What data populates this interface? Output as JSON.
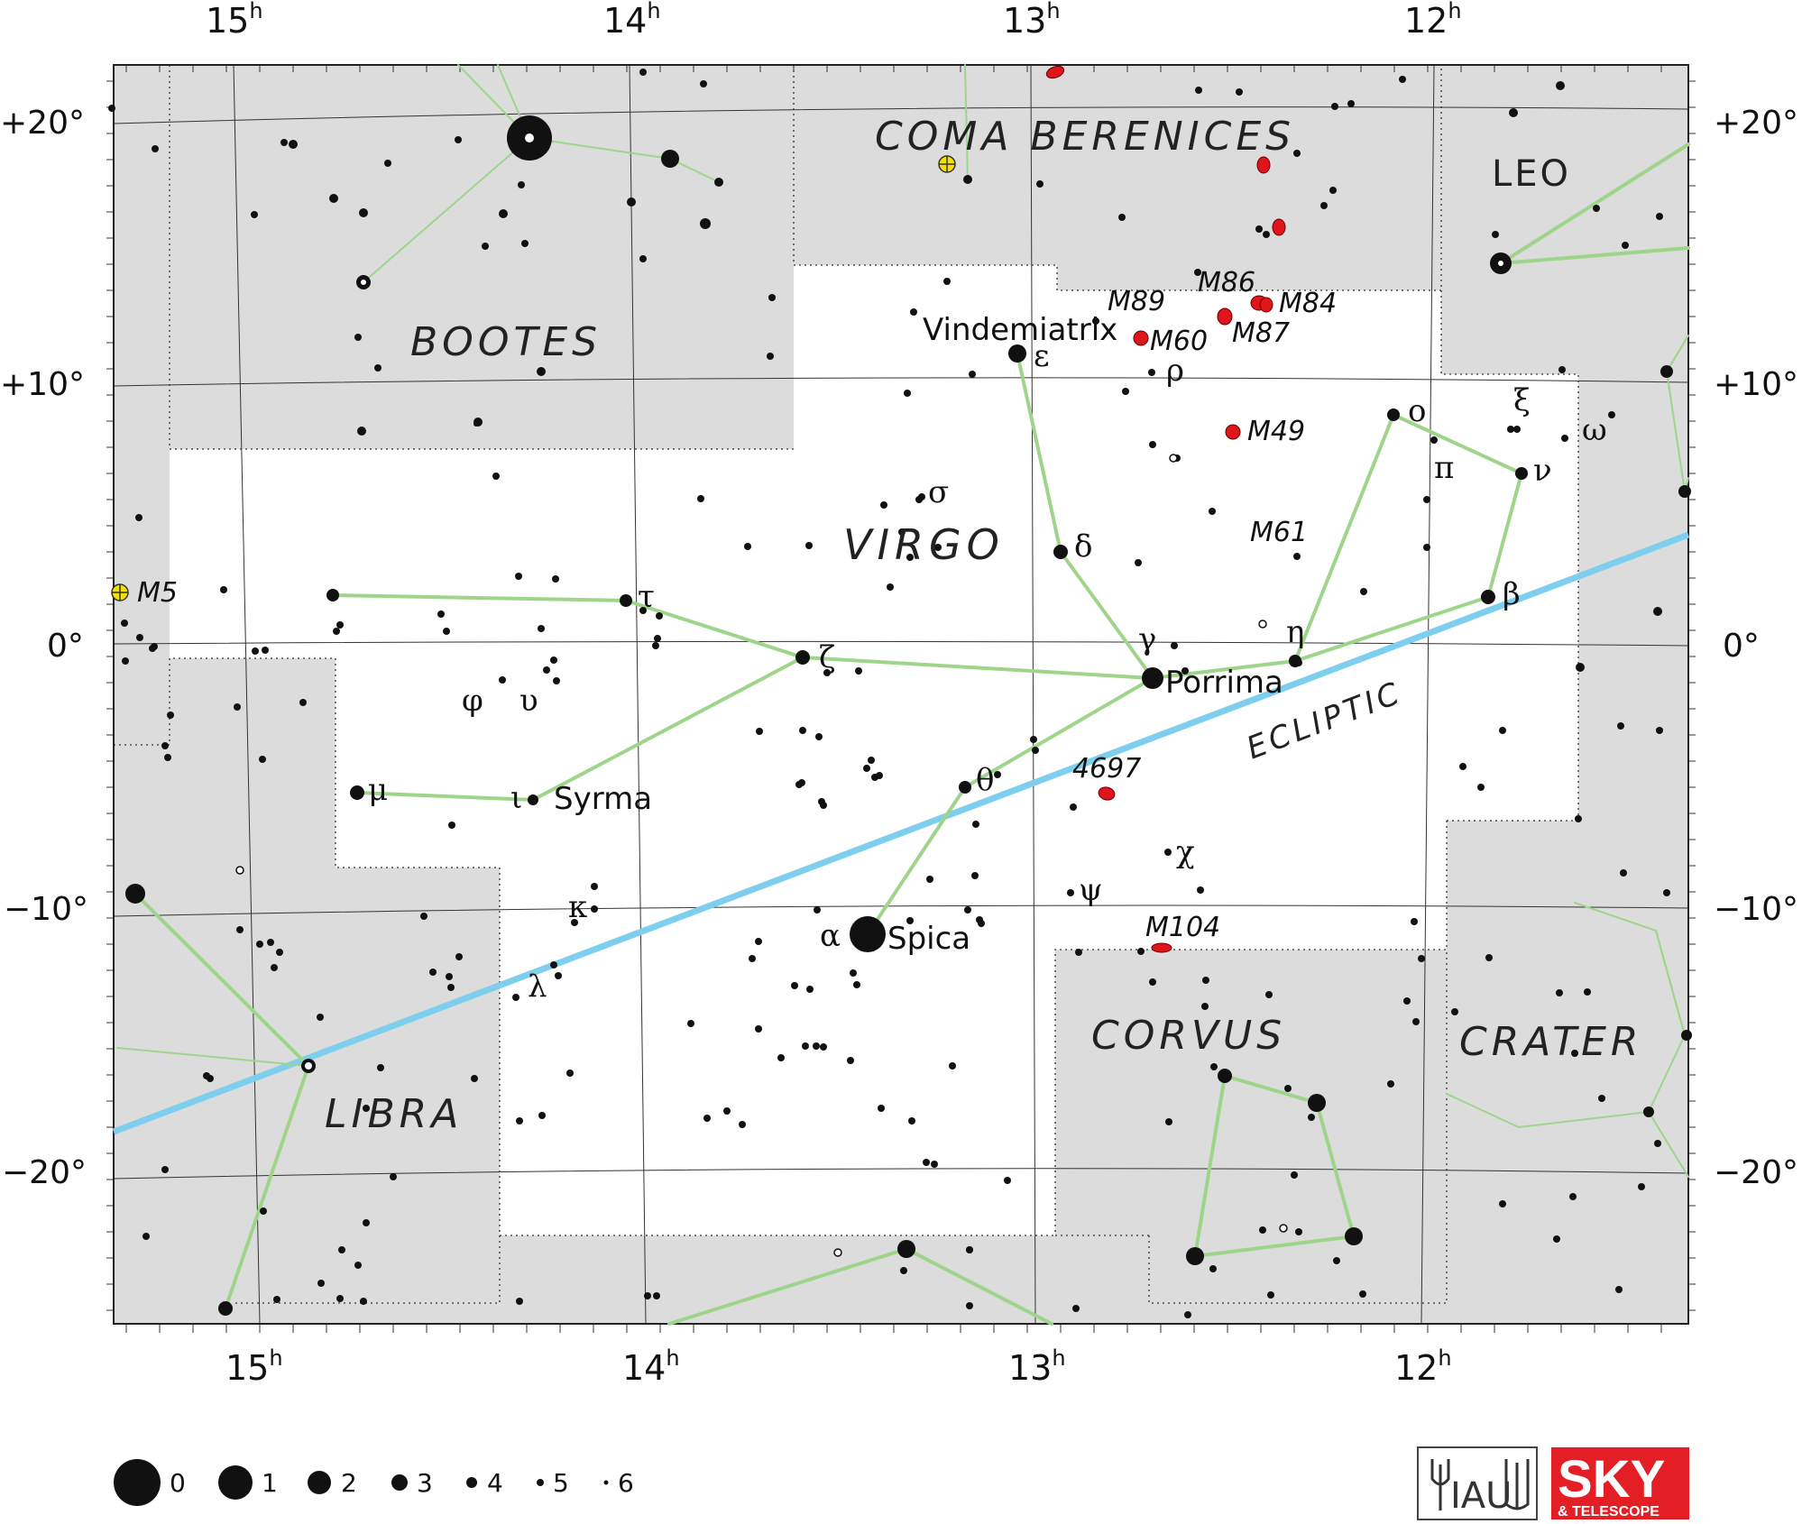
{
  "map": {
    "ra_labels": [
      {
        "h": "15",
        "sup": "h"
      },
      {
        "h": "14",
        "sup": "h"
      },
      {
        "h": "13",
        "sup": "h"
      },
      {
        "h": "12",
        "sup": "h"
      }
    ],
    "dec_labels": [
      "+20°",
      "+10°",
      "0°",
      "−10°",
      "−20°"
    ],
    "constellations": [
      "COMA BERENICES",
      "BOOTES",
      "VIRGO",
      "LEO",
      "LIBRA",
      "CORVUS",
      "CRATER"
    ],
    "ecliptic_label": "ECLIPTIC",
    "star_names": [
      "Vindemiatrix",
      "Porrima",
      "Syrma",
      "Spica"
    ],
    "greek_letters": [
      "ε",
      "ρ",
      "ο",
      "ξ",
      "ω",
      "π",
      "ν",
      "σ",
      "δ",
      "β",
      "τ",
      "ζ",
      "γ",
      "η",
      "φ",
      "υ",
      "μ",
      "ι",
      "θ",
      "χ",
      "ψ",
      "κ",
      "α",
      "λ"
    ],
    "deep_sky": [
      "M5",
      "M89",
      "M86",
      "M84",
      "M60",
      "M87",
      "M49",
      "M61",
      "4697",
      "M104"
    ]
  },
  "legend": {
    "magnitudes": [
      "0",
      "1",
      "2",
      "3",
      "4",
      "5",
      "6"
    ]
  },
  "logos": {
    "iau": "IAU",
    "sky_title": "SKY",
    "sky_sub": "& TELESCOPE"
  },
  "colors": {
    "outside_fill": "#dcdcdc",
    "figure_line": "#9fd58a",
    "ecliptic": "#7ecfee",
    "galaxy": "#e0151b",
    "cluster": "#f3e200",
    "logo_red": "#e31e24"
  }
}
